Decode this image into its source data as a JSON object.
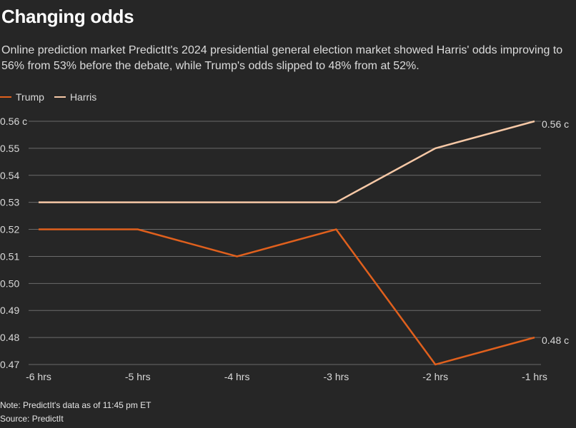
{
  "header": {
    "title": "Changing odds",
    "subtitle": "Online prediction market PredictIt's 2024 presidential general election market showed Harris' odds improving to 56% from 53% before the debate, while Trump's odds slipped to 48% from at 52%."
  },
  "footer": {
    "note": "Note: PredictIt's data as of 11:45 pm ET",
    "source": "Source: PredictIt"
  },
  "colors": {
    "trump": "#e0601d",
    "harris": "#f6c8a6",
    "grid": "#6b6b6b"
  },
  "chart_data": {
    "type": "line",
    "title": "Changing odds",
    "categories": [
      "-6 hrs",
      "-5 hrs",
      "-4 hrs",
      "-3 hrs",
      "-2 hrs",
      "-1 hrs"
    ],
    "series": [
      {
        "name": "Trump",
        "values": [
          0.52,
          0.52,
          0.51,
          0.52,
          0.47,
          0.48
        ],
        "end_label": "0.48 c"
      },
      {
        "name": "Harris",
        "values": [
          0.53,
          0.53,
          0.53,
          0.53,
          0.55,
          0.56
        ],
        "end_label": "0.56 c"
      }
    ],
    "y_ticks": [
      "0.56 c",
      "0.55",
      "0.54",
      "0.53",
      "0.52",
      "0.51",
      "0.50",
      "0.49",
      "0.48",
      "0.47"
    ],
    "y_tick_values": [
      0.56,
      0.55,
      0.54,
      0.53,
      0.52,
      0.51,
      0.5,
      0.49,
      0.48,
      0.47
    ],
    "ylim": [
      0.47,
      0.56
    ],
    "xlabel": "",
    "ylabel": "",
    "grid": true,
    "legend_position": "top-left"
  }
}
